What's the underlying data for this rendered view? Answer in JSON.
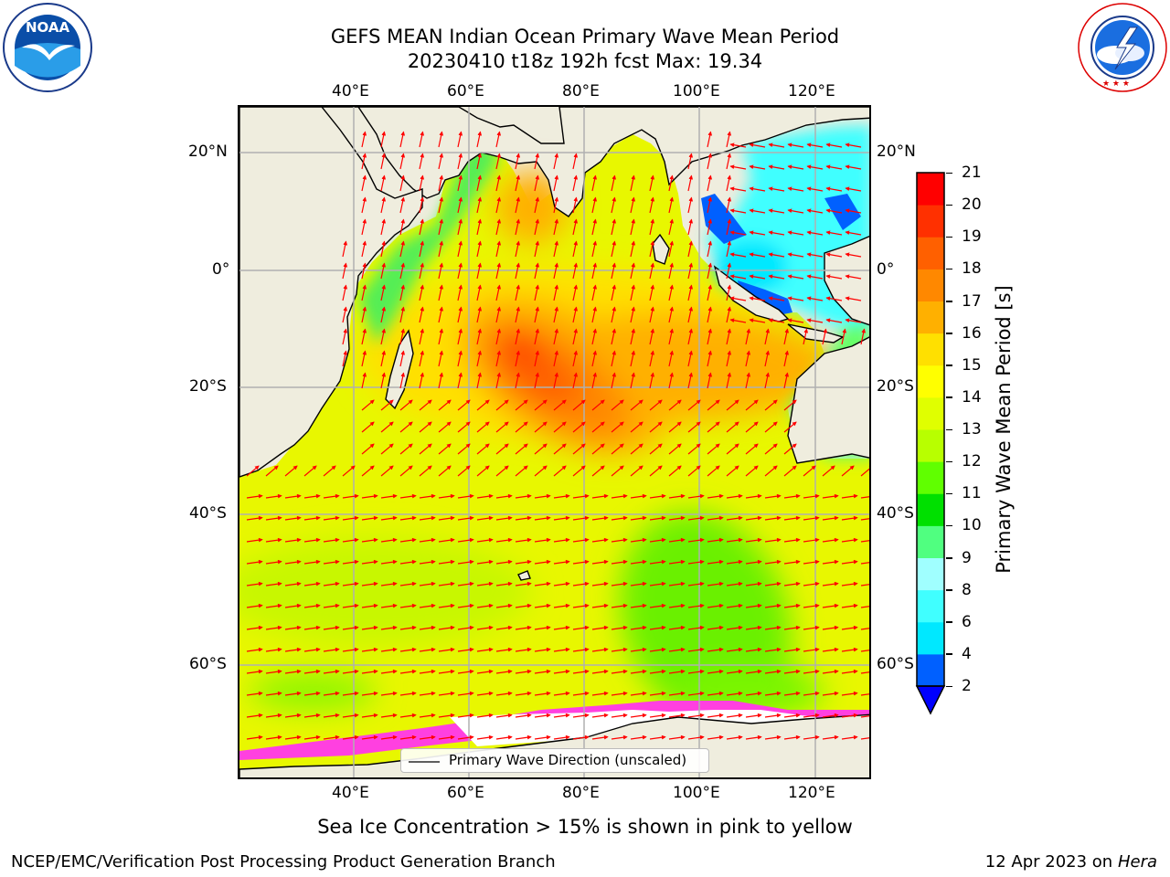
{
  "header": {
    "title_line1": "GEFS MEAN Indian Ocean Primary Wave Mean Period",
    "title_line2": "20230410 t18z 192h fcst   Max: 19.34"
  },
  "logos": {
    "noaa": {
      "text": "NOAA",
      "ring_text": "NATIONAL OCEANIC AND ATMOSPHERIC ADMINISTRATION · U.S. DEPARTMENT OF COMMERCE"
    },
    "nws": {
      "ring_text": "NATIONAL WEATHER SERVICE"
    }
  },
  "map": {
    "lon_ticks": [
      "40°E",
      "60°E",
      "80°E",
      "100°E",
      "120°E"
    ],
    "lat_ticks": [
      "20°N",
      "0°",
      "20°S",
      "40°S",
      "60°S"
    ],
    "legend_label": "Primary Wave Direction (unscaled)",
    "colors": {
      "land": "#efedde",
      "grid": "#b0b0b0",
      "arrow": "#ff0000",
      "coast": "#000000"
    }
  },
  "colorbar": {
    "label": "Primary Wave Mean Period [s]",
    "ticks": [
      "2",
      "4",
      "6",
      "8",
      "9",
      "10",
      "11",
      "12",
      "13",
      "14",
      "15",
      "16",
      "17",
      "18",
      "19",
      "20",
      "21"
    ],
    "colors": [
      "#0060ff",
      "#00e8ff",
      "#40ffff",
      "#a0ffff",
      "#50ff80",
      "#00e000",
      "#60ff00",
      "#b8ff00",
      "#e0ff00",
      "#ffff00",
      "#ffe000",
      "#ffb000",
      "#ff8800",
      "#ff6000",
      "#ff3000",
      "#ff0000"
    ],
    "under_color": "#0000ff"
  },
  "footer": {
    "note": "Sea Ice Concentration > 15% is shown in pink to yellow",
    "org": "NCEP/EMC/Verification Post Processing Product Generation Branch",
    "date": "12 Apr 2023 on",
    "host": "Hera"
  }
}
